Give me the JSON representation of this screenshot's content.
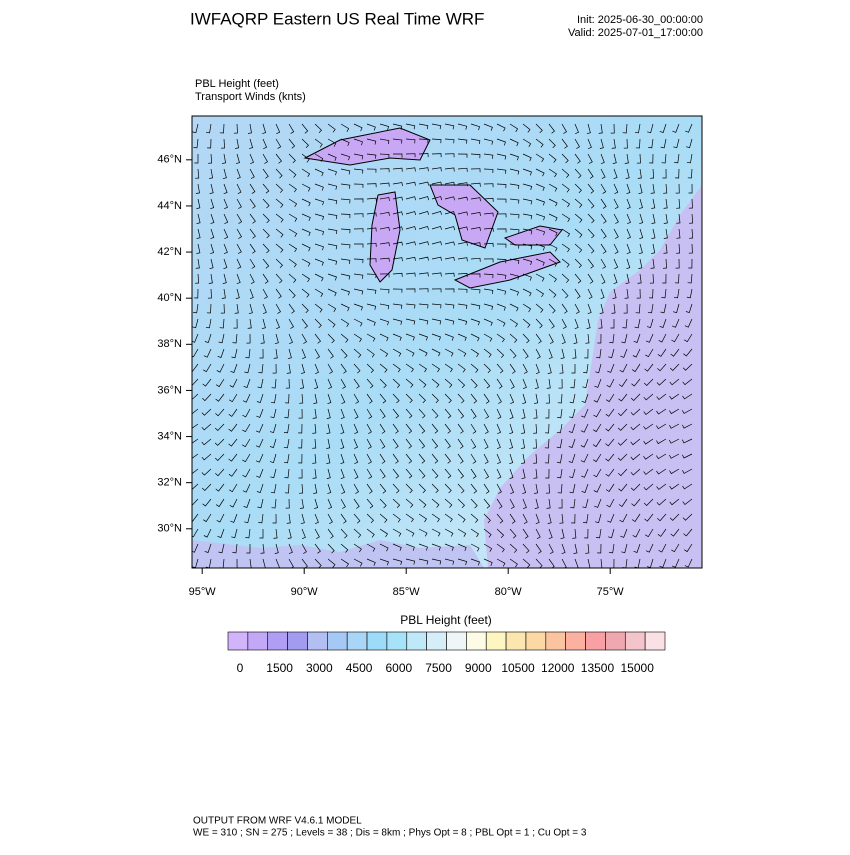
{
  "header": {
    "title": "IWFAQRP Eastern US Real Time WRF",
    "init": "Init: 2025-06-30_00:00:00",
    "valid": "Valid: 2025-07-01_17:00:00"
  },
  "map": {
    "field_label": "PBL Height   (feet)",
    "vector_label": "Transport Winds   (knts)",
    "xlim": [
      -95.5,
      -70.5
    ],
    "ylim": [
      28.3,
      47.9
    ],
    "xticks": [
      {
        "value": -95,
        "label": "95°W"
      },
      {
        "value": -90,
        "label": "90°W"
      },
      {
        "value": -85,
        "label": "85°W"
      },
      {
        "value": -80,
        "label": "80°W"
      },
      {
        "value": -75,
        "label": "75°W"
      }
    ],
    "yticks": [
      {
        "value": 46,
        "label": "46°N"
      },
      {
        "value": 44,
        "label": "44°N"
      },
      {
        "value": 42,
        "label": "42°N"
      },
      {
        "value": 40,
        "label": "40°N"
      },
      {
        "value": 38,
        "label": "38°N"
      },
      {
        "value": 36,
        "label": "36°N"
      },
      {
        "value": 34,
        "label": "34°N"
      },
      {
        "value": 32,
        "label": "32°N"
      },
      {
        "value": 30,
        "label": "30°N"
      }
    ]
  },
  "colorbar": {
    "title": "PBL Height  (feet)",
    "colors": [
      "#d2b4fa",
      "#c3a8f8",
      "#b09ef5",
      "#a29cf0",
      "#b3bef2",
      "#a6c8f4",
      "#a9d6f6",
      "#9cdcf8",
      "#a6e2f8",
      "#bfe8f8",
      "#d6eef8",
      "#eef6f8",
      "#fbfbe6",
      "#fdf6c0",
      "#fbe6b0",
      "#fbd8a4",
      "#fbc4a0",
      "#fbb0a0",
      "#f8a0a4",
      "#f0a8b0",
      "#f3c4cc",
      "#fbe0e6"
    ],
    "labels": [
      0,
      1500,
      3000,
      4500,
      6000,
      7500,
      9000,
      10500,
      12000,
      13500,
      15000
    ]
  },
  "footer": {
    "line1": "OUTPUT FROM WRF V4.6.1 MODEL",
    "line2": "WE = 310 ; SN = 275 ; Levels = 38 ; Dis = 8km ; Phys Opt = 8 ; PBL Opt = 1 ; Cu Opt = 3"
  }
}
